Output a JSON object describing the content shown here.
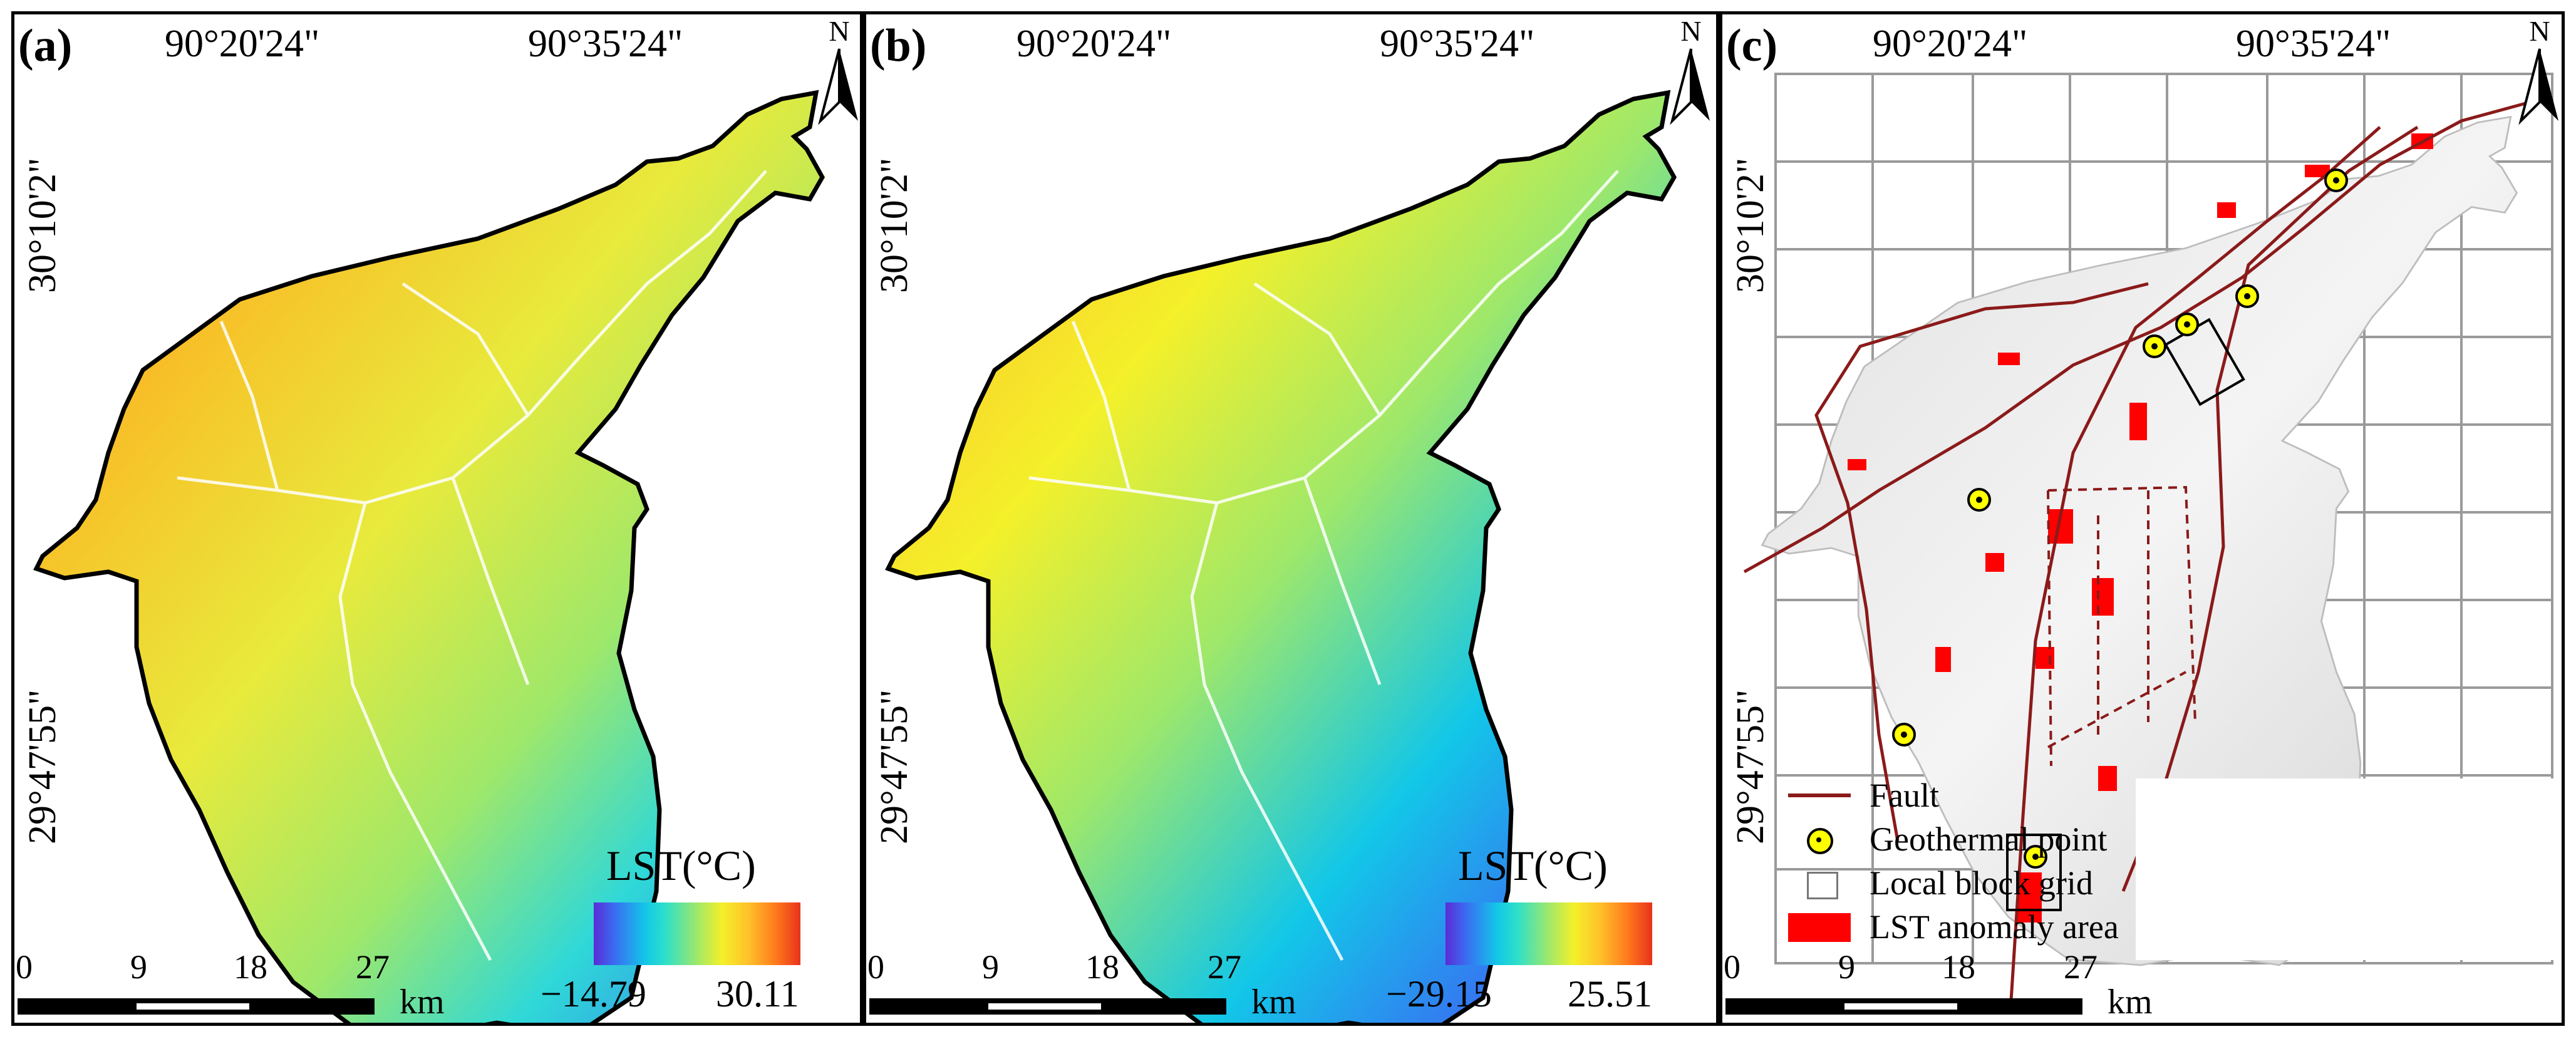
{
  "panels": {
    "a": {
      "label": "(a)",
      "lon_labels": [
        "90°20'24\"",
        "90°35'24\""
      ],
      "lat_labels": [
        "30°10'2\"",
        "29°47'55\""
      ],
      "north": "N",
      "legend": {
        "title": "LST(°C)",
        "min": "−14.79",
        "max": "30.11"
      },
      "scale": {
        "ticks": [
          "0",
          "9",
          "18",
          "27"
        ],
        "unit": "km"
      }
    },
    "b": {
      "label": "(b)",
      "lon_labels": [
        "90°20'24\"",
        "90°35'24\""
      ],
      "lat_labels": [
        "30°10'2\"",
        "29°47'55\""
      ],
      "north": "N",
      "legend": {
        "title": "LST(°C)",
        "min": "−29.15",
        "max": "25.51"
      },
      "scale": {
        "ticks": [
          "0",
          "9",
          "18",
          "27"
        ],
        "unit": "km"
      }
    },
    "c": {
      "label": "(c)",
      "lon_labels": [
        "90°20'24\"",
        "90°35'24\""
      ],
      "lat_labels": [
        "30°10'2\"",
        "29°47'55\""
      ],
      "north": "N",
      "legend_items": [
        "Fault",
        "Geothermal point",
        "Local block grid",
        "LST anomaly area"
      ],
      "scale": {
        "ticks": [
          "0",
          "9",
          "18",
          "27"
        ],
        "unit": "km"
      }
    }
  },
  "colors": {
    "cmap_low": "#5b2bd6",
    "cmap_mid": "#f4f02a",
    "cmap_high": "#e8321c",
    "fault": "#8b1a1a",
    "anomaly": "#ff0000",
    "geothermal": "#ffff00",
    "grid": "#9a9a9a"
  }
}
